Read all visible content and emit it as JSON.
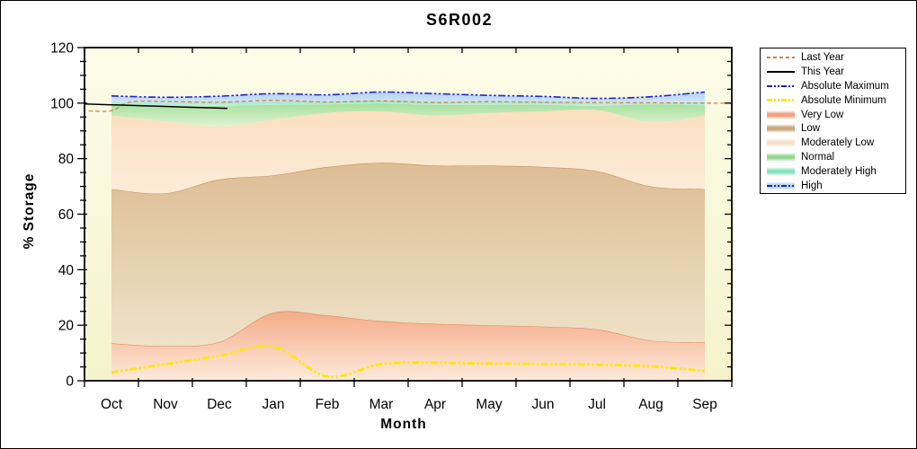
{
  "chart_data": {
    "type": "area",
    "title": "S6R002",
    "xlabel": "Month",
    "ylabel": "% Storage",
    "x_categories": [
      "Oct",
      "Nov",
      "Dec",
      "Jan",
      "Feb",
      "Mar",
      "Apr",
      "May",
      "Jun",
      "Jul",
      "Aug",
      "Sep"
    ],
    "y_ticks": [
      0,
      20,
      40,
      60,
      80,
      100,
      120
    ],
    "y_minor_step": 5,
    "ylim": [
      0,
      120
    ],
    "grid": false,
    "legend_position": "right-outside",
    "plot_bg_top": "#fcfce9",
    "plot_bg_bottom": "#f5f3cb",
    "axis_color": "#000000",
    "bands": [
      {
        "name": "Very Low",
        "upper": [
          13.5,
          12.5,
          14,
          24.5,
          23.5,
          21.5,
          20.5,
          20,
          19.5,
          18.5,
          14.5,
          13.8
        ],
        "fill_top": "#f4ab88",
        "fill_bottom": "#fdeadb",
        "edge": "#e18a63"
      },
      {
        "name": "Low",
        "upper": [
          69,
          67.5,
          72.5,
          74,
          77,
          78.5,
          77.5,
          77.5,
          77,
          75.5,
          70,
          69
        ],
        "fill_top": "#ddbd94",
        "fill_bottom": "#efe2c8",
        "edge": "#c4945e"
      },
      {
        "name": "Moderately Low",
        "upper": [
          95.5,
          93.5,
          91.5,
          94,
          96.5,
          97,
          95.5,
          96.5,
          97,
          97.5,
          93.2,
          95.5
        ],
        "fill_top": "#fbdfc0",
        "fill_bottom": "#fdecd8",
        "edge": ""
      },
      {
        "name": "Normal",
        "upper": [
          99.2,
          98.8,
          99,
          99.4,
          99.6,
          99.8,
          99.4,
          99.4,
          99.4,
          99,
          99.6,
          99.2
        ],
        "fill_top": "#a6e19e",
        "fill_bottom": "#e2f2d2",
        "edge": ""
      },
      {
        "name": "Moderately High",
        "upper": [
          100.4,
          100.2,
          100.4,
          100.6,
          100.6,
          101,
          100.6,
          100.5,
          100.6,
          100.1,
          100,
          100.4
        ],
        "fill_top": "#9ce4c8",
        "fill_bottom": "#c6f0e0",
        "edge": ""
      },
      {
        "name": "High",
        "upper": [
          102.6,
          102.1,
          102.5,
          103.4,
          103,
          104,
          103.4,
          102.8,
          102.4,
          101.7,
          102.3,
          104
        ],
        "fill_top": "#b5d3ee",
        "fill_bottom": "#d2e5f6",
        "edge": ""
      }
    ],
    "lines": [
      {
        "name": "Last Year",
        "color": "#cd8540",
        "style": "dash",
        "width": 1.3,
        "x": [
          -0.42,
          0,
          0.35,
          1,
          2,
          3,
          4,
          5,
          6,
          7,
          8,
          9,
          10,
          11,
          11.5
        ],
        "y": [
          97.2,
          97.3,
          100.4,
          100.6,
          100.3,
          101,
          100.4,
          100.8,
          100.2,
          100.5,
          100.3,
          100.2,
          100.1,
          100,
          100
        ]
      },
      {
        "name": "This Year",
        "color": "#000000",
        "style": "solid",
        "width": 1.5,
        "x": [
          -0.5,
          0,
          1,
          2,
          2.15
        ],
        "y": [
          99.7,
          99.4,
          98.8,
          98.2,
          98.1
        ]
      },
      {
        "name": "Absolute Maximum",
        "color": "#2222cc",
        "style": "dashdot",
        "width": 1.6,
        "x": [
          0,
          1,
          2,
          3,
          4,
          5,
          6,
          7,
          8,
          9,
          10,
          11
        ],
        "y": [
          102.6,
          102.1,
          102.5,
          103.4,
          103,
          104,
          103.4,
          102.8,
          102.4,
          101.7,
          102.3,
          104
        ]
      },
      {
        "name": "Absolute Minimum",
        "color": "#ffe800",
        "style": "dashdot",
        "width": 2.8,
        "x": [
          0,
          1,
          2,
          3,
          4,
          5,
          6,
          7,
          8,
          9,
          10,
          11
        ],
        "y": [
          3,
          6,
          9,
          12.3,
          1.5,
          6,
          6.5,
          6.2,
          6,
          5.8,
          5.2,
          3.5
        ]
      }
    ],
    "legend": {
      "items": [
        {
          "label": "Last Year",
          "swatch": "line",
          "color": "#cd8540",
          "dash": "dash",
          "thickness": 2
        },
        {
          "label": "This Year",
          "swatch": "line",
          "color": "#000000",
          "dash": "solid",
          "thickness": 2
        },
        {
          "label": "Absolute Maximum",
          "swatch": "line",
          "color": "#2222cc",
          "dash": "dashdot",
          "thickness": 2
        },
        {
          "label": "Absolute Minimum",
          "swatch": "line",
          "color": "#ffe800",
          "dash": "dashdot",
          "thickness": 3
        },
        {
          "label": "Very Low",
          "swatch": "band",
          "color": "#f0a080"
        },
        {
          "label": "Low",
          "swatch": "band",
          "color": "#c9a87c"
        },
        {
          "label": "Moderately Low",
          "swatch": "band",
          "color": "#f6dfc4"
        },
        {
          "label": "Normal",
          "swatch": "band",
          "color": "#92d88e"
        },
        {
          "label": "Moderately High",
          "swatch": "band",
          "color": "#84e0be"
        },
        {
          "label": "High",
          "swatch": "band-line",
          "color": "#b7d2ec",
          "line_color": "#2222cc"
        }
      ]
    }
  }
}
